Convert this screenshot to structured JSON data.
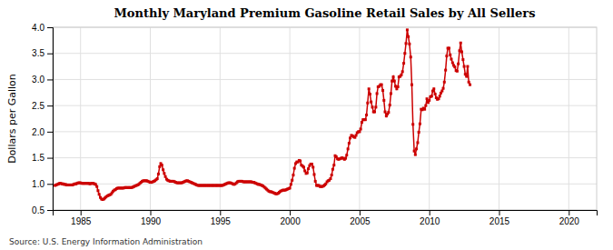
{
  "chart_data": {
    "type": "line",
    "title": "Monthly Maryland Premium Gasoline Retail Sales by All Sellers",
    "ylabel": "Dollars per Gallon",
    "annotations": [
      "Source: U.S. Energy Information Administration"
    ],
    "color": "#cc0000",
    "marker": "square",
    "grid": true,
    "xlim": [
      1983.0,
      2022.0
    ],
    "ylim": [
      0.5,
      4.0
    ],
    "xticks": [
      1985,
      1990,
      1995,
      2000,
      2005,
      2010,
      2015,
      2020
    ],
    "yticks": [
      0.5,
      {
        "value": 1.0,
        "label": "1.0"
      },
      1.5,
      {
        "value": 2.0,
        "label": "2.0"
      },
      2.5,
      {
        "value": 3.0,
        "label": "3.0"
      },
      3.5,
      {
        "value": 4.0,
        "label": "4.0"
      }
    ],
    "x": [
      1983.17,
      1983.25,
      1983.33,
      1983.42,
      1983.5,
      1983.58,
      1983.67,
      1983.75,
      1983.83,
      1983.92,
      1984.0,
      1984.08,
      1984.17,
      1984.25,
      1984.33,
      1984.42,
      1984.5,
      1984.58,
      1984.67,
      1984.75,
      1984.83,
      1984.92,
      1985.0,
      1985.08,
      1985.17,
      1985.25,
      1985.33,
      1985.42,
      1985.5,
      1985.58,
      1985.67,
      1985.75,
      1985.83,
      1985.92,
      1986.0,
      1986.08,
      1986.17,
      1986.25,
      1986.33,
      1986.42,
      1986.5,
      1986.58,
      1986.67,
      1986.75,
      1986.83,
      1986.92,
      1987.0,
      1987.08,
      1987.17,
      1987.25,
      1987.33,
      1987.42,
      1987.5,
      1987.58,
      1987.67,
      1987.75,
      1987.83,
      1987.92,
      1988.0,
      1988.08,
      1988.17,
      1988.25,
      1988.33,
      1988.42,
      1988.5,
      1988.58,
      1988.67,
      1988.75,
      1988.83,
      1988.92,
      1989.0,
      1989.08,
      1989.17,
      1989.25,
      1989.33,
      1989.42,
      1989.5,
      1989.58,
      1989.67,
      1989.75,
      1989.83,
      1989.92,
      1990.0,
      1990.08,
      1990.17,
      1990.25,
      1990.33,
      1990.42,
      1990.5,
      1990.58,
      1990.67,
      1990.75,
      1990.83,
      1990.92,
      1991.0,
      1991.08,
      1991.17,
      1991.25,
      1991.33,
      1991.42,
      1991.5,
      1991.58,
      1991.67,
      1991.75,
      1991.83,
      1991.92,
      1992.0,
      1992.08,
      1992.17,
      1992.25,
      1992.33,
      1992.42,
      1992.5,
      1992.58,
      1992.67,
      1992.75,
      1992.83,
      1992.92,
      1993.0,
      1993.08,
      1993.17,
      1993.25,
      1993.33,
      1993.42,
      1993.5,
      1993.58,
      1993.67,
      1993.75,
      1993.83,
      1993.92,
      1994.0,
      1994.08,
      1994.17,
      1994.25,
      1994.33,
      1994.42,
      1994.5,
      1994.58,
      1994.67,
      1994.75,
      1994.83,
      1994.92,
      1995.0,
      1995.08,
      1995.17,
      1995.25,
      1995.33,
      1995.42,
      1995.5,
      1995.58,
      1995.67,
      1995.75,
      1995.83,
      1995.92,
      1996.0,
      1996.08,
      1996.17,
      1996.25,
      1996.33,
      1996.42,
      1996.5,
      1996.58,
      1996.67,
      1996.75,
      1996.83,
      1996.92,
      1997.0,
      1997.08,
      1997.17,
      1997.25,
      1997.33,
      1997.42,
      1997.5,
      1997.58,
      1997.67,
      1997.75,
      1997.83,
      1997.92,
      1998.0,
      1998.08,
      1998.17,
      1998.25,
      1998.33,
      1998.42,
      1998.5,
      1998.58,
      1998.67,
      1998.75,
      1998.83,
      1998.92,
      1999.0,
      1999.08,
      1999.17,
      1999.25,
      1999.33,
      1999.42,
      1999.5,
      1999.58,
      1999.67,
      1999.75,
      1999.83,
      1999.92,
      2000.0,
      2000.08,
      2000.17,
      2000.25,
      2000.33,
      2000.42,
      2000.5,
      2000.58,
      2000.67,
      2000.75,
      2000.83,
      2000.92,
      2001.0,
      2001.08,
      2001.17,
      2001.25,
      2001.33,
      2001.42,
      2001.5,
      2001.58,
      2001.67,
      2001.75,
      2001.83,
      2001.92,
      2002.0,
      2002.08,
      2002.17,
      2002.25,
      2002.33,
      2002.42,
      2002.5,
      2002.58,
      2002.67,
      2002.75,
      2002.83,
      2002.92,
      2003.0,
      2003.08,
      2003.17,
      2003.25,
      2003.33,
      2003.42,
      2003.5,
      2003.58,
      2003.67,
      2003.75,
      2003.83,
      2003.92,
      2004.0,
      2004.08,
      2004.17,
      2004.25,
      2004.33,
      2004.42,
      2004.5,
      2004.58,
      2004.67,
      2004.75,
      2004.83,
      2004.92,
      2005.0,
      2005.08,
      2005.17,
      2005.25,
      2005.33,
      2005.42,
      2005.5,
      2005.58,
      2005.67,
      2005.75,
      2005.83,
      2005.92,
      2006.0,
      2006.08,
      2006.17,
      2006.25,
      2006.33,
      2006.42,
      2006.5,
      2006.58,
      2006.67,
      2006.75,
      2006.83,
      2006.92,
      2007.0,
      2007.08,
      2007.17,
      2007.25,
      2007.33,
      2007.42,
      2007.5,
      2007.58,
      2007.67,
      2007.75,
      2007.83,
      2007.92,
      2008.0,
      2008.08,
      2008.17,
      2008.25,
      2008.33,
      2008.42,
      2008.5,
      2008.58,
      2008.67,
      2008.75,
      2008.83,
      2008.92,
      2009.0,
      2009.08,
      2009.17,
      2009.25,
      2009.33,
      2009.42,
      2009.5,
      2009.58,
      2009.67,
      2009.75,
      2009.83,
      2009.92,
      2010.0,
      2010.08,
      2010.17,
      2010.25,
      2010.33,
      2010.42,
      2010.5,
      2010.58,
      2010.67,
      2010.75,
      2010.83,
      2010.92,
      2011.0,
      2011.08,
      2011.17,
      2011.25,
      2011.33,
      2011.42,
      2011.5,
      2011.58,
      2011.67,
      2011.75,
      2011.83,
      2011.92,
      2012.0,
      2012.08,
      2012.17,
      2012.25,
      2012.33,
      2012.42,
      2012.5,
      2012.58,
      2012.67,
      2012.75,
      2012.83,
      2012.92
    ],
    "values": [
      0.97,
      0.98,
      0.99,
      1.0,
      1.01,
      1.01,
      1.0,
      1.0,
      0.99,
      0.99,
      0.98,
      0.98,
      0.98,
      0.98,
      0.98,
      0.98,
      0.99,
      1.0,
      1.0,
      1.01,
      1.02,
      1.02,
      1.02,
      1.01,
      1.01,
      1.01,
      1.01,
      1.01,
      1.01,
      1.01,
      1.0,
      1.01,
      1.01,
      1.01,
      1.0,
      0.99,
      0.95,
      0.87,
      0.8,
      0.74,
      0.71,
      0.7,
      0.71,
      0.73,
      0.75,
      0.77,
      0.78,
      0.79,
      0.8,
      0.83,
      0.86,
      0.88,
      0.89,
      0.91,
      0.92,
      0.92,
      0.92,
      0.92,
      0.92,
      0.92,
      0.93,
      0.93,
      0.93,
      0.93,
      0.93,
      0.93,
      0.93,
      0.94,
      0.95,
      0.96,
      0.97,
      0.98,
      0.99,
      1.01,
      1.03,
      1.05,
      1.06,
      1.06,
      1.06,
      1.06,
      1.05,
      1.04,
      1.03,
      1.03,
      1.04,
      1.05,
      1.06,
      1.08,
      1.1,
      1.19,
      1.33,
      1.39,
      1.36,
      1.27,
      1.2,
      1.14,
      1.09,
      1.07,
      1.06,
      1.05,
      1.05,
      1.05,
      1.05,
      1.04,
      1.03,
      1.02,
      1.02,
      1.02,
      1.02,
      1.02,
      1.03,
      1.04,
      1.05,
      1.06,
      1.06,
      1.05,
      1.04,
      1.03,
      1.02,
      1.01,
      1.0,
      0.99,
      0.98,
      0.97,
      0.97,
      0.97,
      0.97,
      0.97,
      0.97,
      0.97,
      0.97,
      0.97,
      0.97,
      0.97,
      0.97,
      0.97,
      0.97,
      0.97,
      0.97,
      0.97,
      0.97,
      0.97,
      0.97,
      0.97,
      0.97,
      0.98,
      0.99,
      1.0,
      1.01,
      1.02,
      1.02,
      1.02,
      1.01,
      1.0,
      0.99,
      1.0,
      1.02,
      1.04,
      1.05,
      1.05,
      1.05,
      1.05,
      1.04,
      1.04,
      1.04,
      1.04,
      1.04,
      1.04,
      1.04,
      1.04,
      1.03,
      1.03,
      1.02,
      1.01,
      1.0,
      0.99,
      0.99,
      0.98,
      0.97,
      0.96,
      0.94,
      0.92,
      0.9,
      0.88,
      0.86,
      0.85,
      0.85,
      0.84,
      0.83,
      0.82,
      0.81,
      0.81,
      0.82,
      0.84,
      0.86,
      0.87,
      0.88,
      0.88,
      0.88,
      0.89,
      0.9,
      0.91,
      0.92,
      0.99,
      1.07,
      1.17,
      1.3,
      1.39,
      1.42,
      1.42,
      1.45,
      1.44,
      1.36,
      1.34,
      1.32,
      1.25,
      1.2,
      1.21,
      1.29,
      1.35,
      1.38,
      1.38,
      1.32,
      1.18,
      1.05,
      0.97,
      0.97,
      0.97,
      0.95,
      0.95,
      0.95,
      0.96,
      0.98,
      1.0,
      1.04,
      1.06,
      1.07,
      1.1,
      1.17,
      1.28,
      1.36,
      1.54,
      1.52,
      1.48,
      1.47,
      1.48,
      1.49,
      1.5,
      1.49,
      1.47,
      1.49,
      1.55,
      1.67,
      1.78,
      1.88,
      1.93,
      1.92,
      1.9,
      1.89,
      1.93,
      1.98,
      2.0,
      2.0,
      2.05,
      2.18,
      2.23,
      2.23,
      2.23,
      2.32,
      2.55,
      2.82,
      2.72,
      2.57,
      2.47,
      2.38,
      2.38,
      2.47,
      2.73,
      2.86,
      2.87,
      2.9,
      2.9,
      2.79,
      2.6,
      2.38,
      2.3,
      2.34,
      2.37,
      2.51,
      2.73,
      2.97,
      3.05,
      2.97,
      2.87,
      2.82,
      2.86,
      3.05,
      3.06,
      3.09,
      3.15,
      3.31,
      3.5,
      3.69,
      3.95,
      3.82,
      3.68,
      3.43,
      2.9,
      2.14,
      1.63,
      1.56,
      1.67,
      1.79,
      1.99,
      2.15,
      2.43,
      2.42,
      2.45,
      2.43,
      2.5,
      2.63,
      2.56,
      2.6,
      2.67,
      2.68,
      2.78,
      2.82,
      2.72,
      2.65,
      2.62,
      2.63,
      2.68,
      2.74,
      2.78,
      2.83,
      2.95,
      3.18,
      3.45,
      3.6,
      3.6,
      3.47,
      3.39,
      3.32,
      3.27,
      3.24,
      3.17,
      3.16,
      3.3,
      3.55,
      3.7,
      3.53,
      3.38,
      3.25,
      3.1,
      3.06,
      3.25,
      2.95,
      2.9
    ]
  }
}
